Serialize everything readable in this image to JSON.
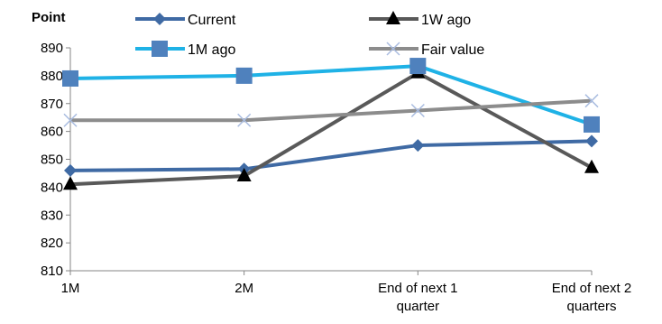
{
  "chart_data": {
    "type": "line",
    "ylabel": "Point",
    "xlabel": "",
    "title": "",
    "categories": [
      "1M",
      "2M",
      "End of next 1 quarter",
      "End of next 2 quarters"
    ],
    "category_lines": [
      [
        "1M"
      ],
      [
        "2M"
      ],
      [
        "End of next 1",
        "quarter"
      ],
      [
        "End of next 2",
        "quarters"
      ]
    ],
    "ylim": [
      810,
      890
    ],
    "yticks": [
      810,
      820,
      830,
      840,
      850,
      860,
      870,
      880,
      890
    ],
    "grid": false,
    "legend_placement": "top",
    "series": [
      {
        "name": "Current",
        "values": [
          846,
          846.5,
          855,
          856.5
        ],
        "color": "#3F6AA4",
        "marker": "diamond"
      },
      {
        "name": "1W ago",
        "values": [
          841,
          844,
          881,
          847
        ],
        "color": "#595959",
        "marker": "triangle"
      },
      {
        "name": "1M ago",
        "values": [
          879,
          880,
          883.5,
          862.5
        ],
        "color": "#1FB2E6",
        "marker": "square"
      },
      {
        "name": "Fair value",
        "values": [
          864,
          864,
          867.5,
          871
        ],
        "color": "#8C8C8C",
        "marker": "x"
      }
    ]
  }
}
